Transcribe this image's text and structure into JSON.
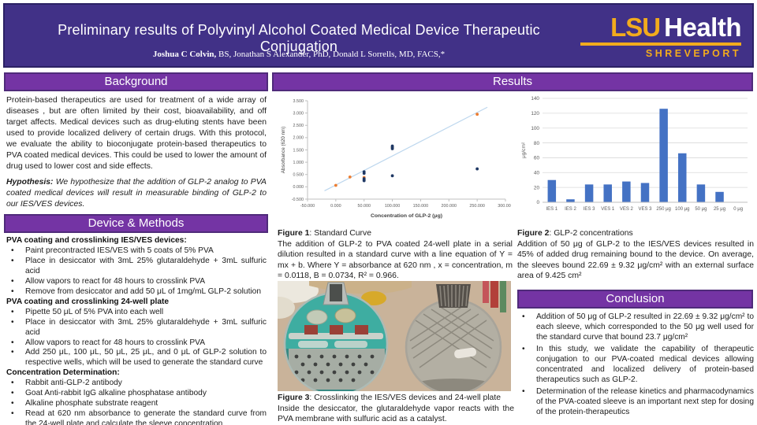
{
  "poster": {
    "title": "Preliminary results of Polyvinyl Alcohol Coated Medical Device Therapeutic Conjugation",
    "authors_bold": "Joshua C Colvin,",
    "authors_rest": " BS, Jonathan S Alexander, PhD, Donald L Sorrells, MD, FACS,*",
    "logo": {
      "lsu": "LSU",
      "health": "Health",
      "city": "SHREVEPORT"
    },
    "colors": {
      "header_purple": "#413187",
      "section_purple": "#7434A4",
      "gold": "#F2AB1D",
      "bar_blue": "#4472C4",
      "point_orange": "#ED7D31",
      "point_navy": "#1F3864"
    }
  },
  "background": {
    "heading": "Background",
    "paragraph": "Protein-based therapeutics are used for treatment of a wide array of diseases , but are often limited by their cost, bioavailability, and off target affects.  Medical devices such as drug-eluting stents have been used to provide localized delivery of certain drugs. With this protocol, we evaluate the ability to bioconjugate protein-based therapeutics to PVA coated medical devices.  This could be used to lower the amount of drug used to lower cost and side effects.",
    "hypothesis_label": "Hypothesis:",
    "hypothesis_text": " We hypothesize that the addition of GLP-2 analog to PVA coated medical devices will result in measurable binding of GLP-2 to our IES/VES devices."
  },
  "methods": {
    "heading": "Device & Methods",
    "sections": [
      {
        "title": "PVA coating and crosslinking IES/VES devices:",
        "bullets": [
          "Paint precontracted IES/VES with 5 coats of 5% PVA",
          "Place in desiccator with 3mL 25% glutaraldehyde + 3mL sulfuric acid",
          "Allow vapors to react for 48 hours to crosslink PVA",
          "Remove from desiccator and add 50 μL of 1mg/mL GLP-2 solution"
        ]
      },
      {
        "title": "PVA coating and crosslinking 24-well plate",
        "bullets": [
          "Pipette 50 μL of 5% PVA into each well",
          "Place in desiccator with 3mL 25% glutaraldehyde + 3mL sulfuric acid",
          "Allow vapors to react for 48 hours to crosslink PVA",
          "Add 250 μL, 100 μL, 50 μL, 25 μL, and 0 μL of GLP-2 solution to respective wells, which will be used to generate the standard curve"
        ]
      },
      {
        "title": "Concentration Determination:",
        "bullets": [
          "Rabbit anti-GLP-2 antibody",
          "Goat Anti-rabbit IgG alkaline phosphatase antibody",
          "Alkaline phosphate substrate reagent",
          "Read at 620 nm absorbance to generate the standard curve from the 24-well plate and calculate the sleeve concentration"
        ]
      }
    ]
  },
  "results": {
    "heading": "Results"
  },
  "figure1": {
    "label": "Figure 1",
    "title": ": Standard Curve",
    "caption": "The addition of GLP-2 to PVA coated 24-well plate in a serial dilution resulted in a standard curve with a line equation of Y = mx + b. Where Y = absorbance at 620 nm , x = concentration, m = 0.0118, B = 0.0734, R² = 0.966."
  },
  "figure2": {
    "label": "Figure 2",
    "title": ": GLP-2 concentrations",
    "caption": "Addition of 50 μg of GLP-2 to the IES/VES devices resulted in 45% of added drug remaining bound to the device.  On average, the sleeves bound 22.69 ± 9.32 μg/cm² with an external surface area of 9.425 cm²"
  },
  "figure3": {
    "label": "Figure 3",
    "title": ": Crosslinking the IES/VES devices and 24-well plate",
    "caption": "Inside the desiccator, the glutaraldehyde vapor reacts with the PVA membrane with sulfuric acid as a catalyst."
  },
  "conclusion": {
    "heading": "Conclusion",
    "bullets": [
      "Addition of 50 μg of GLP-2 resulted in 22.69 ± 9.32 μg/cm² to each sleeve, which corresponded to the 50 μg well used for the standard curve that bound 23.7 μg/cm²",
      "In this study, we validate the capability of therapeutic conjugation to our PVA-coated medical devices allowing concentrated and localized delivery of protein-based therapeutics such as GLP-2.",
      "Determination of the release kinetics and pharmacodynamics of the PVA-coated sleeve is an important next step for dosing of the protein-therapeutics"
    ]
  },
  "chart_data": [
    {
      "type": "scatter",
      "title": "",
      "xlabel": "Concentration of GLP-2 (μg)",
      "ylabel": "Absorbance (620 nm)",
      "xlim": [
        -50,
        300
      ],
      "ylim": [
        -0.5,
        3.5
      ],
      "xticks": [
        -50,
        0,
        50,
        100,
        150,
        200,
        250,
        300
      ],
      "xtick_labels": [
        "-50.000",
        "0.000",
        "50.000",
        "100.000",
        "150.000",
        "200.000",
        "250.000",
        "300.000"
      ],
      "yticks": [
        -0.5,
        0,
        0.5,
        1,
        1.5,
        2,
        2.5,
        3,
        3.5
      ],
      "ytick_labels": [
        "-0.500",
        "0.000",
        "0.500",
        "1.000",
        "1.500",
        "2.000",
        "2.500",
        "3.000",
        "3.500"
      ],
      "grid": false,
      "series": [
        {
          "name": "standard-curve-wells",
          "color": "#ED7D31",
          "points": [
            [
              0,
              0.06
            ],
            [
              25,
              0.4
            ],
            [
              50,
              0.38
            ],
            [
              100,
              1.6
            ],
            [
              250,
              2.95
            ]
          ]
        },
        {
          "name": "device-samples",
          "color": "#1F3864",
          "points": [
            [
              50,
              0.25
            ],
            [
              50,
              0.29
            ],
            [
              50,
              0.33
            ],
            [
              50,
              0.55
            ],
            [
              50,
              0.61
            ],
            [
              100,
              0.45
            ],
            [
              100,
              1.55
            ],
            [
              100,
              1.61
            ],
            [
              100,
              1.66
            ],
            [
              250,
              0.73
            ]
          ]
        }
      ],
      "trendline": {
        "m": 0.0118,
        "b": 0.0734,
        "x_start": -20,
        "x_end": 268,
        "color": "#BDD7EE"
      }
    },
    {
      "type": "bar",
      "categories": [
        "IES 1",
        "IES 2",
        "IES 3",
        "VES 1",
        "VES 2",
        "VES 3",
        "250 μg",
        "100 μg",
        "50 μg",
        "25 μg",
        "0 μg"
      ],
      "values": [
        30,
        4,
        24,
        24,
        28,
        26,
        126,
        66,
        24,
        14,
        0
      ],
      "title": "",
      "xlabel": "",
      "ylabel": "μg/cm²",
      "ylim": [
        0,
        140
      ],
      "ytick_step": 20,
      "grid": true,
      "bar_color": "#4472C4",
      "legend": "none"
    }
  ]
}
